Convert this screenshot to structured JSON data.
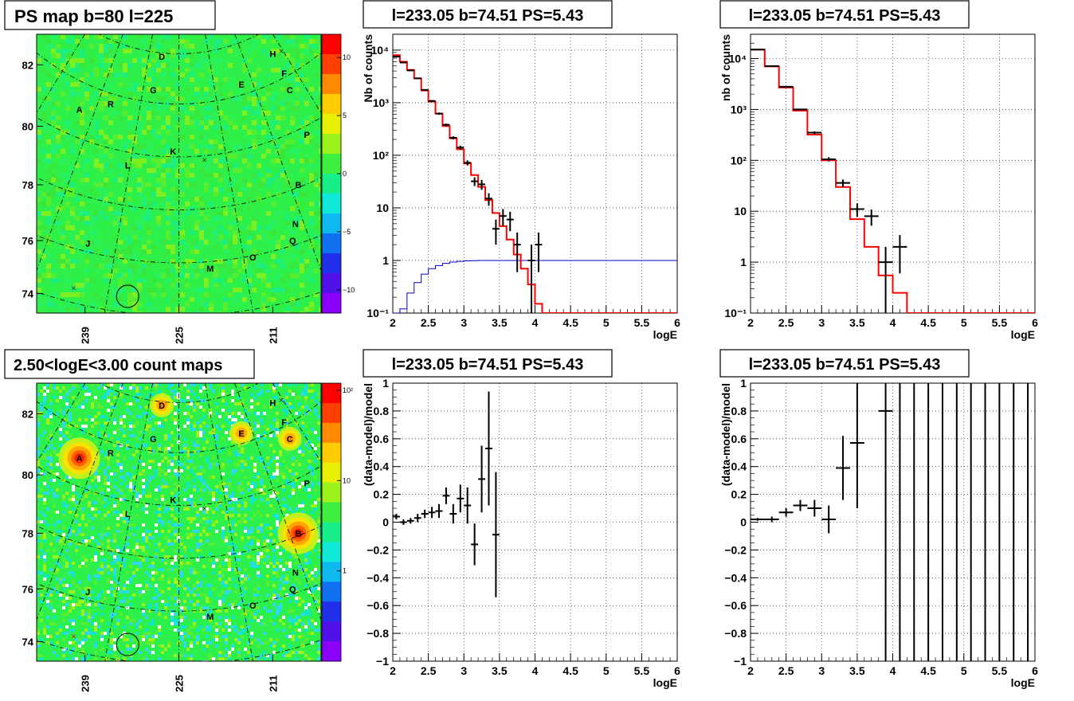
{
  "colors": {
    "model_line": "#ff0000",
    "blue_line": "#0000cc",
    "data": "#000000",
    "map_green": "#2ef04a"
  },
  "maps": [
    {
      "title": "PS map b=80 l=225",
      "colorbar_ticks": [
        "10",
        "5",
        "0",
        "−5",
        "−10"
      ],
      "colorbar_values": [
        10,
        5,
        0,
        -5,
        -10
      ],
      "colorbar_range": [
        -12,
        12
      ],
      "y_ticks": [
        "82",
        "80",
        "78",
        "76",
        "74"
      ],
      "x_ticks": [
        "239",
        "225",
        "211"
      ],
      "sources": [
        "D",
        "H",
        "F",
        "E",
        "C",
        "G",
        "R",
        "A",
        "P",
        "K",
        "L",
        "B",
        "N",
        "Q",
        "J",
        "O",
        "M"
      ],
      "blobs": []
    },
    {
      "title": "2.50<logE<3.00 count maps",
      "colorbar_ticks": [
        "10²",
        "10",
        "1"
      ],
      "colorbar_values": [
        100,
        10,
        1
      ],
      "colorbar_range": [
        0.1,
        120
      ],
      "y_ticks": [
        "82",
        "80",
        "78",
        "76",
        "74"
      ],
      "x_ticks": [
        "239",
        "225",
        "211"
      ],
      "sources": [
        "D",
        "H",
        "F",
        "E",
        "C",
        "G",
        "R",
        "A",
        "P",
        "K",
        "L",
        "B",
        "N",
        "Q",
        "J",
        "O",
        "M"
      ],
      "blobs": [
        "A",
        "B",
        "C",
        "D",
        "E"
      ]
    }
  ],
  "chart_data": [
    {
      "type": "line",
      "title": "l=233.05 b=74.51 PS=5.43",
      "xlabel": "logE",
      "ylabel": "Nb of counts",
      "xlim": [
        2,
        6
      ],
      "ylim": [
        0.1,
        20000
      ],
      "yscale": "log",
      "x_ticks": [
        "2",
        "2.5",
        "3",
        "3.5",
        "4",
        "4.5",
        "5",
        "5.5",
        "6"
      ],
      "y_ticks": [
        "10⁴",
        "10³",
        "10²",
        "10",
        "1",
        "10⁻¹"
      ],
      "grid": true,
      "model_bins": {
        "edges": [
          2.0,
          2.1,
          2.2,
          2.3,
          2.4,
          2.5,
          2.6,
          2.7,
          2.8,
          2.9,
          3.0,
          3.1,
          3.2,
          3.3,
          3.4,
          3.5,
          3.6,
          3.7,
          3.8,
          3.9,
          4.0,
          4.1,
          6.0
        ],
        "values": [
          8000,
          6000,
          4200,
          2900,
          1700,
          1050,
          620,
          360,
          210,
          130,
          70,
          42,
          25,
          14,
          8,
          4.5,
          2.5,
          1.3,
          0.7,
          0.35,
          0.15,
          0.1
        ]
      },
      "blue_curve": {
        "x": [
          2.0,
          2.1,
          2.2,
          2.3,
          2.4,
          2.5,
          2.6,
          2.7,
          2.8,
          2.9,
          3.0,
          3.1,
          3.2,
          3.3,
          3.4,
          3.5,
          6.0
        ],
        "y": [
          0.07,
          0.12,
          0.24,
          0.38,
          0.55,
          0.7,
          0.8,
          0.88,
          0.93,
          0.96,
          0.98,
          0.99,
          1.0,
          1.0,
          1.0,
          1.0,
          1.0
        ]
      },
      "data_points": [
        {
          "x": 2.05,
          "y": 7500,
          "ylo": 7400,
          "yhi": 7600
        },
        {
          "x": 2.15,
          "y": 5800,
          "ylo": 5700,
          "yhi": 5900
        },
        {
          "x": 2.25,
          "y": 4100,
          "ylo": 4000,
          "yhi": 4200
        },
        {
          "x": 2.35,
          "y": 2900,
          "ylo": 2850,
          "yhi": 2950
        },
        {
          "x": 2.45,
          "y": 1750,
          "ylo": 1700,
          "yhi": 1800
        },
        {
          "x": 2.55,
          "y": 1080,
          "ylo": 1040,
          "yhi": 1120
        },
        {
          "x": 2.65,
          "y": 620,
          "ylo": 590,
          "yhi": 650
        },
        {
          "x": 2.75,
          "y": 380,
          "ylo": 360,
          "yhi": 400
        },
        {
          "x": 2.85,
          "y": 215,
          "ylo": 200,
          "yhi": 230
        },
        {
          "x": 2.95,
          "y": 140,
          "ylo": 128,
          "yhi": 152
        },
        {
          "x": 3.05,
          "y": 72,
          "ylo": 64,
          "yhi": 80
        },
        {
          "x": 3.15,
          "y": 32,
          "ylo": 26,
          "yhi": 38
        },
        {
          "x": 3.25,
          "y": 28,
          "ylo": 22,
          "yhi": 34
        },
        {
          "x": 3.35,
          "y": 15,
          "ylo": 11,
          "yhi": 19
        },
        {
          "x": 3.45,
          "y": 4,
          "ylo": 2,
          "yhi": 6
        },
        {
          "x": 3.55,
          "y": 7,
          "ylo": 4.5,
          "yhi": 9.5
        },
        {
          "x": 3.65,
          "y": 6,
          "ylo": 3.6,
          "yhi": 8.4
        },
        {
          "x": 3.75,
          "y": 2,
          "ylo": 0.6,
          "yhi": 3.4
        },
        {
          "x": 3.95,
          "y": 1,
          "ylo": 0.1,
          "yhi": 2
        },
        {
          "x": 4.05,
          "y": 2,
          "ylo": 0.6,
          "yhi": 3.4
        }
      ]
    },
    {
      "type": "line",
      "title": "l=233.05 b=74.51 PS=5.43",
      "xlabel": "logE",
      "ylabel": "nb of counts",
      "xlim": [
        2,
        6
      ],
      "ylim": [
        0.1,
        30000
      ],
      "yscale": "log",
      "x_ticks": [
        "2",
        "2.5",
        "3",
        "3.5",
        "4",
        "4.5",
        "5",
        "5.5",
        "6"
      ],
      "y_ticks": [
        "10⁴",
        "10³",
        "10²",
        "10",
        "1",
        "10⁻¹"
      ],
      "grid": true,
      "model_bins": {
        "edges": [
          2.0,
          2.2,
          2.4,
          2.6,
          2.8,
          3.0,
          3.2,
          3.4,
          3.6,
          3.8,
          4.0,
          4.2,
          6.0
        ],
        "values": [
          15000,
          7000,
          2700,
          950,
          320,
          100,
          30,
          7,
          2,
          0.55,
          0.25,
          0.1
        ]
      },
      "data_points": [
        {
          "x": 2.1,
          "y": 15000,
          "ylo": 14800,
          "yhi": 15200
        },
        {
          "x": 2.3,
          "y": 7100,
          "ylo": 7000,
          "yhi": 7200
        },
        {
          "x": 2.5,
          "y": 2800,
          "ylo": 2750,
          "yhi": 2850
        },
        {
          "x": 2.7,
          "y": 1000,
          "ylo": 970,
          "yhi": 1030
        },
        {
          "x": 2.9,
          "y": 350,
          "ylo": 330,
          "yhi": 370
        },
        {
          "x": 3.1,
          "y": 105,
          "ylo": 95,
          "yhi": 115
        },
        {
          "x": 3.3,
          "y": 36,
          "ylo": 30,
          "yhi": 42
        },
        {
          "x": 3.5,
          "y": 11,
          "ylo": 7.7,
          "yhi": 14.3
        },
        {
          "x": 3.7,
          "y": 8,
          "ylo": 5.2,
          "yhi": 10.8
        },
        {
          "x": 3.9,
          "y": 1,
          "ylo": 0.1,
          "yhi": 2
        },
        {
          "x": 4.1,
          "y": 2,
          "ylo": 0.6,
          "yhi": 3.4
        }
      ]
    },
    {
      "type": "scatter",
      "title": "l=233.05 b=74.51 PS=5.43",
      "xlabel": "logE",
      "ylabel": "(data-model)/model",
      "xlim": [
        2,
        6
      ],
      "ylim": [
        -1,
        1
      ],
      "x_ticks": [
        "2",
        "2.5",
        "3",
        "3.5",
        "4",
        "4.5",
        "5",
        "5.5",
        "6"
      ],
      "y_ticks": [
        "1",
        "0.8",
        "0.6",
        "0.4",
        "0.2",
        "0",
        "−0.2",
        "−0.4",
        "−0.6",
        "−0.8",
        "−1"
      ],
      "grid": true,
      "data_points": [
        {
          "x": 2.05,
          "y": 0.04,
          "ylo": 0.02,
          "yhi": 0.06
        },
        {
          "x": 2.15,
          "y": 0.0,
          "ylo": -0.02,
          "yhi": 0.02
        },
        {
          "x": 2.25,
          "y": 0.01,
          "ylo": -0.01,
          "yhi": 0.03
        },
        {
          "x": 2.35,
          "y": 0.03,
          "ylo": 0.0,
          "yhi": 0.06
        },
        {
          "x": 2.45,
          "y": 0.06,
          "ylo": 0.03,
          "yhi": 0.09
        },
        {
          "x": 2.55,
          "y": 0.07,
          "ylo": 0.03,
          "yhi": 0.11
        },
        {
          "x": 2.65,
          "y": 0.08,
          "ylo": 0.03,
          "yhi": 0.13
        },
        {
          "x": 2.75,
          "y": 0.19,
          "ylo": 0.13,
          "yhi": 0.25
        },
        {
          "x": 2.85,
          "y": 0.06,
          "ylo": -0.01,
          "yhi": 0.13
        },
        {
          "x": 2.95,
          "y": 0.17,
          "ylo": 0.07,
          "yhi": 0.27
        },
        {
          "x": 3.05,
          "y": 0.12,
          "ylo": -0.01,
          "yhi": 0.25
        },
        {
          "x": 3.15,
          "y": -0.16,
          "ylo": -0.31,
          "yhi": -0.01
        },
        {
          "x": 3.25,
          "y": 0.31,
          "ylo": 0.07,
          "yhi": 0.55
        },
        {
          "x": 3.35,
          "y": 0.53,
          "ylo": 0.12,
          "yhi": 0.94
        },
        {
          "x": 3.45,
          "y": -0.09,
          "ylo": -0.54,
          "yhi": 0.36
        }
      ]
    },
    {
      "type": "scatter",
      "title": "l=233.05 b=74.51 PS=5.43",
      "xlabel": "logE",
      "ylabel": "(data-model)/model",
      "xlim": [
        2,
        6
      ],
      "ylim": [
        -1,
        1
      ],
      "x_ticks": [
        "2",
        "2.5",
        "3",
        "3.5",
        "4",
        "4.5",
        "5",
        "5.5",
        "6"
      ],
      "y_ticks": [
        "1",
        "0.8",
        "0.6",
        "0.4",
        "0.2",
        "0",
        "−0.2",
        "−0.4",
        "−0.6",
        "−0.8",
        "−1"
      ],
      "grid": true,
      "data_points": [
        {
          "x": 2.1,
          "y": 0.02,
          "ylo": 0.01,
          "yhi": 0.03
        },
        {
          "x": 2.3,
          "y": 0.02,
          "ylo": 0.0,
          "yhi": 0.04
        },
        {
          "x": 2.5,
          "y": 0.07,
          "ylo": 0.04,
          "yhi": 0.1
        },
        {
          "x": 2.7,
          "y": 0.12,
          "ylo": 0.08,
          "yhi": 0.16
        },
        {
          "x": 2.9,
          "y": 0.1,
          "ylo": 0.04,
          "yhi": 0.16
        },
        {
          "x": 3.1,
          "y": 0.02,
          "ylo": -0.08,
          "yhi": 0.12
        },
        {
          "x": 3.3,
          "y": 0.39,
          "ylo": 0.16,
          "yhi": 0.62
        },
        {
          "x": 3.5,
          "y": 0.57,
          "ylo": 0.1,
          "yhi": 1.0
        },
        {
          "x": 3.9,
          "y": 0.8,
          "ylo": -1.0,
          "yhi": 1.0
        },
        {
          "x": 4.1,
          "y": null,
          "ylo": -1.0,
          "yhi": 1.0
        },
        {
          "x": 4.3,
          "y": null,
          "ylo": -1.0,
          "yhi": 1.0
        },
        {
          "x": 4.5,
          "y": null,
          "ylo": -1.0,
          "yhi": 1.0
        },
        {
          "x": 4.7,
          "y": null,
          "ylo": -1.0,
          "yhi": 1.0
        },
        {
          "x": 4.9,
          "y": null,
          "ylo": -1.0,
          "yhi": 1.0
        },
        {
          "x": 5.1,
          "y": null,
          "ylo": -1.0,
          "yhi": 1.0
        },
        {
          "x": 5.3,
          "y": null,
          "ylo": -1.0,
          "yhi": 1.0
        },
        {
          "x": 5.5,
          "y": null,
          "ylo": -1.0,
          "yhi": 1.0
        },
        {
          "x": 5.7,
          "y": null,
          "ylo": -1.0,
          "yhi": 1.0
        },
        {
          "x": 5.9,
          "y": null,
          "ylo": -1.0,
          "yhi": 1.0
        }
      ]
    }
  ]
}
